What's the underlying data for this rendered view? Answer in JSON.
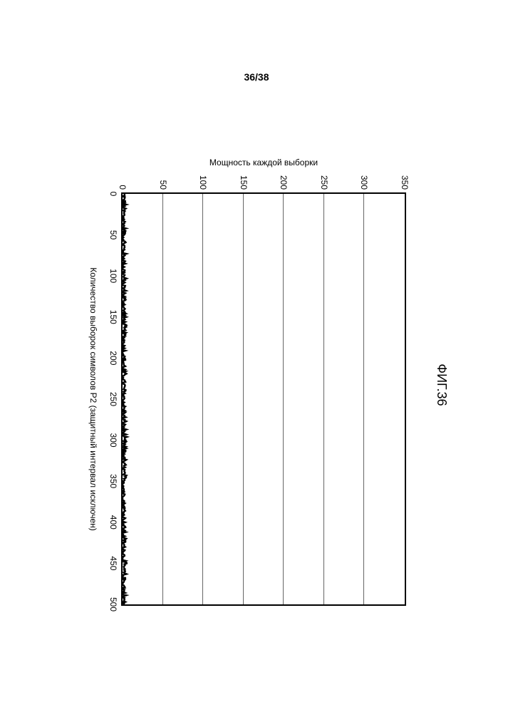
{
  "page_number": "36/38",
  "chart": {
    "type": "line",
    "title": "ФИГ.36",
    "title_fontsize": 18,
    "xlabel": "Количество выборок символов P2 (защитный интервал исключен)",
    "ylabel": "Мощность каждой выборки",
    "label_fontsize": 12,
    "tick_fontsize": 12,
    "xlim": [
      0,
      500
    ],
    "ylim": [
      0,
      350
    ],
    "xticks": [
      0,
      50,
      100,
      150,
      200,
      250,
      300,
      350,
      400,
      450,
      500
    ],
    "yticks": [
      0,
      50,
      100,
      150,
      200,
      250,
      300,
      350
    ],
    "grid": {
      "horizontal": true,
      "vertical": false,
      "color": "#000000",
      "opacity": 0.6
    },
    "background_color": "#ffffff",
    "border_color": "#000000",
    "series": [
      {
        "name": "power",
        "color": "#000000",
        "line_width": 2.5,
        "noise_amplitude": 4,
        "baseline": 1.5,
        "x_start": 0,
        "x_end": 500,
        "n_points": 500
      }
    ]
  }
}
